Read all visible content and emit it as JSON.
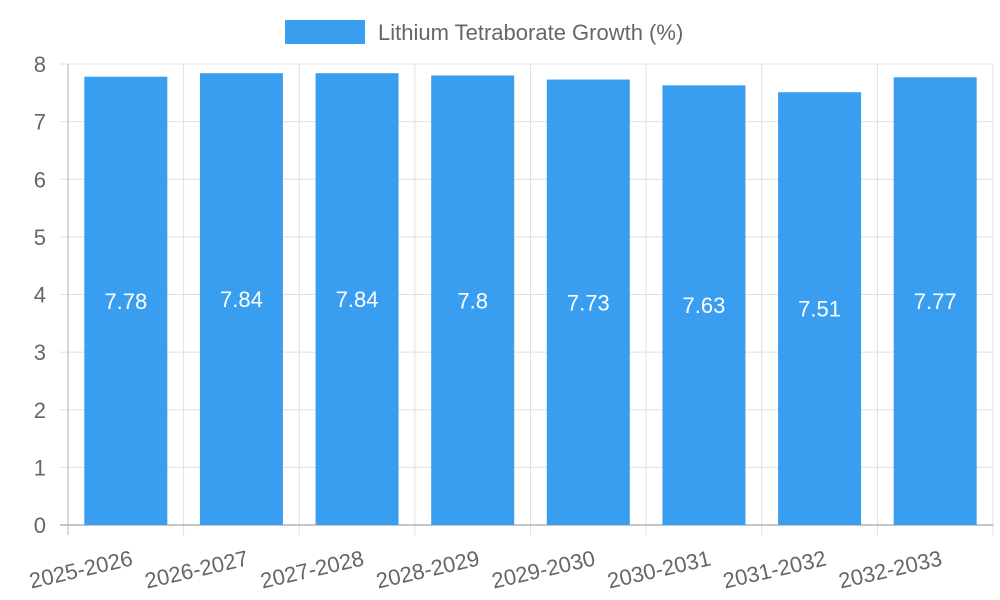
{
  "chart_data": {
    "type": "bar",
    "title": "",
    "xlabel": "",
    "ylabel": "",
    "legend": {
      "label": "Lithium Tetraborate Growth (%)",
      "placement": "top-center"
    },
    "categories": [
      "2025-2026",
      "2026-2027",
      "2027-2028",
      "2028-2029",
      "2029-2030",
      "2030-2031",
      "2031-2032",
      "2032-2033"
    ],
    "series": [
      {
        "name": "Lithium Tetraborate Growth (%)",
        "values": [
          7.78,
          7.84,
          7.84,
          7.8,
          7.73,
          7.63,
          7.51,
          7.77
        ],
        "data_labels": [
          "7.78",
          "7.84",
          "7.84",
          "7.8",
          "7.73",
          "7.63",
          "7.51",
          "7.77"
        ]
      }
    ],
    "ylim": [
      0,
      8
    ],
    "y_ticks": [
      0,
      1,
      2,
      3,
      4,
      5,
      6,
      7,
      8
    ],
    "grid": true
  },
  "colors": {
    "bar": "#3a9ef0",
    "grid": "#e0e0e0",
    "axis": "#b3b3b3",
    "tick_text": "#666666",
    "data_label": "#ffffff"
  }
}
